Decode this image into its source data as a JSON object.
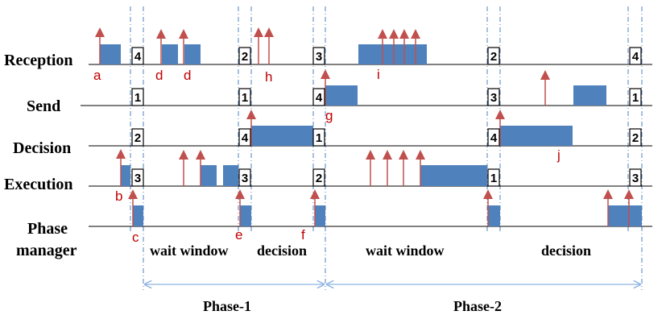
{
  "colors": {
    "block": "#4f81bd",
    "arrow": "#c0504d",
    "baseline": "#000000",
    "phase_line": "#4f81bd",
    "span_arrow": "#8eb4e3"
  },
  "lanes": [
    {
      "id": "reception",
      "label": "Reception"
    },
    {
      "id": "send",
      "label": "Send"
    },
    {
      "id": "decision",
      "label": "Decision"
    },
    {
      "id": "execution",
      "label": "Execution"
    },
    {
      "id": "phase-manager",
      "label_line1": "Phase",
      "label_line2": "manager"
    }
  ],
  "boundary_numbers": {
    "reception": [
      "4",
      "2",
      "3",
      "2",
      "4"
    ],
    "send": [
      "1",
      "1",
      "4",
      "3",
      "1"
    ],
    "decision": [
      "2",
      "4",
      "1",
      "4",
      "2"
    ],
    "execution": [
      "3",
      "3",
      "2",
      "1",
      "3"
    ]
  },
  "event_letters": [
    "a",
    "d",
    "d",
    "h",
    "i",
    "g",
    "j",
    "b",
    "c",
    "e",
    "f"
  ],
  "window_labels": [
    "wait window",
    "decision",
    "wait window",
    "decision"
  ],
  "phases": [
    "Phase-1",
    "Phase-2"
  ]
}
